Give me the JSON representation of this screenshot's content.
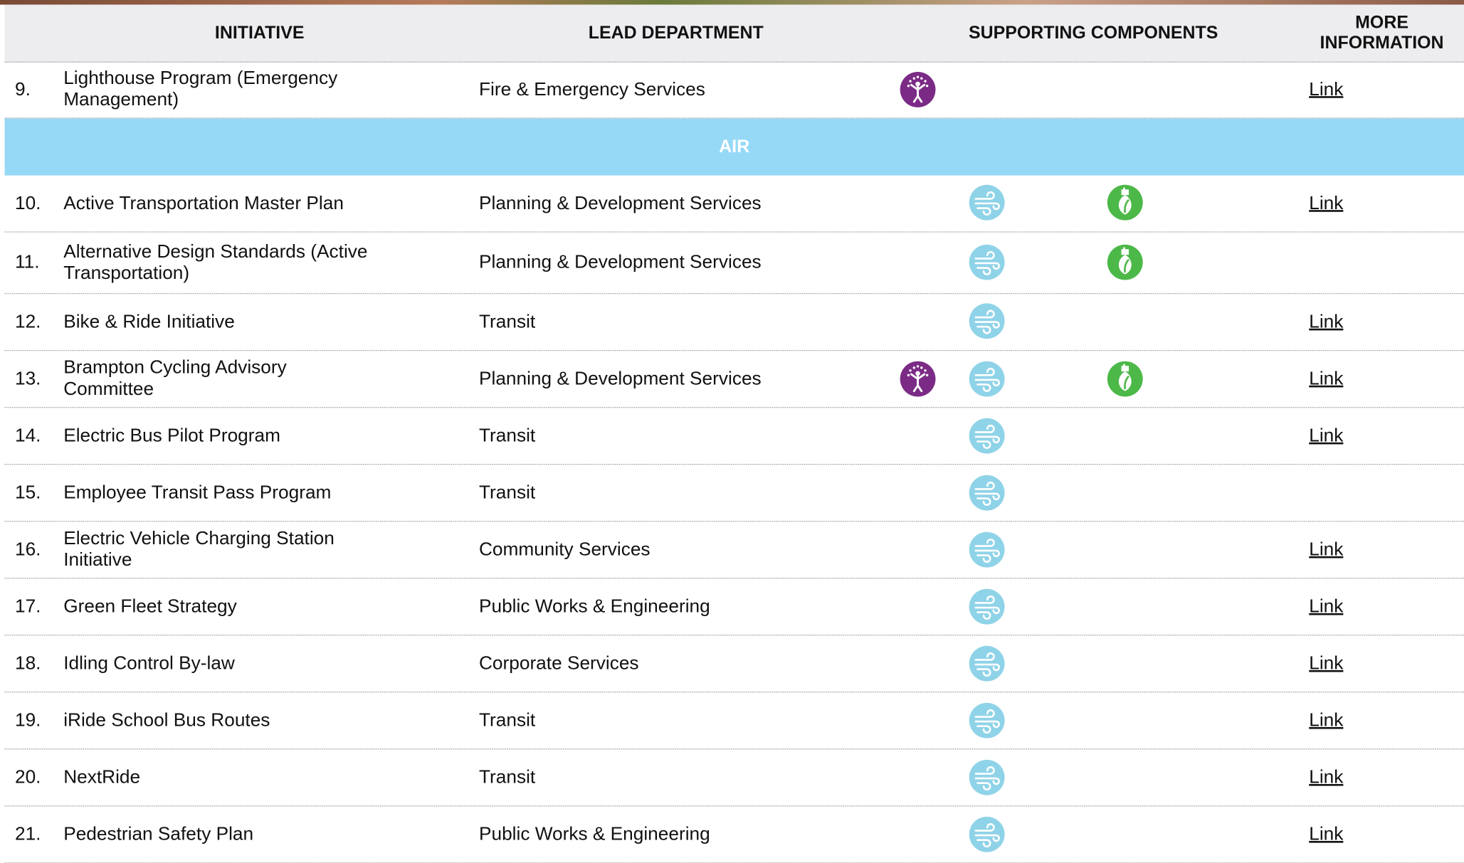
{
  "header": {
    "initiative": "INITIATIVE",
    "lead_department": "LEAD DEPARTMENT",
    "supporting_components": "SUPPORTING COMPONENTS",
    "more_information": "MORE INFORMATION"
  },
  "sections": [
    {
      "rows": [
        {
          "number": "9.",
          "initiative": "Lighthouse Program (Emergency Management)",
          "department": "Fire & Emergency Services",
          "link": "Link"
        }
      ]
    },
    {
      "title": "AIR",
      "rows": [
        {
          "number": "10.",
          "initiative": "Active Transportation Master Plan",
          "department": "Planning & Development Services",
          "link": "Link"
        },
        {
          "number": "11.",
          "initiative": "Alternative Design Standards (Active Transportation)",
          "department": "Planning & Development Services"
        },
        {
          "number": "12.",
          "initiative": "Bike & Ride Initiative",
          "department": "Transit",
          "link": "Link"
        },
        {
          "number": "13.",
          "initiative": "Brampton Cycling Advisory Committee",
          "department": "Planning & Development Services",
          "link": "Link"
        },
        {
          "number": "14.",
          "initiative": "Electric Bus Pilot Program",
          "department": "Transit",
          "link": "Link"
        },
        {
          "number": "15.",
          "initiative": "Employee Transit Pass Program",
          "department": "Transit"
        },
        {
          "number": "16.",
          "initiative": "Electric Vehicle Charging Station Initiative",
          "department": "Community Services",
          "link": "Link"
        },
        {
          "number": "17.",
          "initiative": "Green Fleet Strategy",
          "department": "Public Works & Engineering",
          "link": "Link"
        },
        {
          "number": "18.",
          "initiative": "Idling Control By-law",
          "department": "Corporate Services",
          "link": "Link"
        },
        {
          "number": "19.",
          "initiative": "iRide School Bus Routes",
          "department": "Transit",
          "link": "Link"
        },
        {
          "number": "20.",
          "initiative": "NextRide",
          "department": "Transit",
          "link": "Link"
        },
        {
          "number": "21.",
          "initiative": "Pedestrian Safety Plan",
          "department": "Public Works & Engineering",
          "link": "Link"
        }
      ]
    }
  ]
}
